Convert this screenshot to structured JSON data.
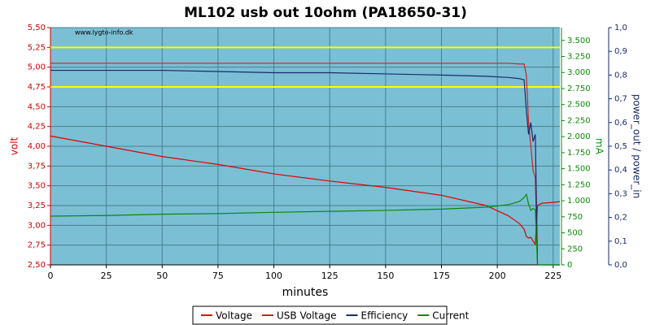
{
  "chart_data": {
    "type": "line",
    "title": "ML102 usb out 10ohm (PA18650-31)",
    "watermark": "www.lygte-info.dk",
    "xlabel": "minutes",
    "ylabel": "volt",
    "y2label": "mA",
    "y3label": "power_out / power_in",
    "x": [
      0,
      25,
      50,
      75,
      100,
      125,
      150,
      175,
      195,
      205,
      210,
      212,
      213,
      214,
      215,
      216,
      217,
      218,
      220,
      225,
      228
    ],
    "series": [
      {
        "name": "Voltage",
        "color": "#e00000",
        "axis": "y",
        "values": [
          4.13,
          4.0,
          3.87,
          3.77,
          3.65,
          3.56,
          3.48,
          3.38,
          3.25,
          3.12,
          3.02,
          2.95,
          2.86,
          2.84,
          2.85,
          2.8,
          2.76,
          3.25,
          3.28,
          3.29,
          3.3
        ]
      },
      {
        "name": "USB Voltage",
        "color": "#d02020",
        "axis": "y",
        "values": [
          5.05,
          5.05,
          5.05,
          5.05,
          5.05,
          5.05,
          5.05,
          5.05,
          5.05,
          5.05,
          5.04,
          5.04,
          4.9,
          4.3,
          4.0,
          3.7,
          3.6,
          2.5,
          null,
          null,
          null
        ]
      },
      {
        "name": "Efficiency",
        "color": "#1a2a6c",
        "axis": "y3",
        "values": [
          0.82,
          0.82,
          0.82,
          0.815,
          0.81,
          0.81,
          0.805,
          0.8,
          0.795,
          0.79,
          0.785,
          0.78,
          0.65,
          0.55,
          0.6,
          0.52,
          0.55,
          0,
          0,
          0,
          0
        ]
      },
      {
        "name": "Current",
        "color": "#0a8a0a",
        "axis": "y2",
        "values": [
          760,
          770,
          790,
          800,
          820,
          835,
          850,
          870,
          900,
          940,
          990,
          1050,
          1100,
          950,
          850,
          880,
          860,
          0,
          0,
          0,
          0
        ]
      }
    ],
    "reference_lines": {
      "values": [
        5.25,
        4.75
      ],
      "color": "#ffff00"
    },
    "xlim": [
      0,
      228
    ],
    "xticks": [
      0,
      25,
      50,
      75,
      100,
      125,
      150,
      175,
      200,
      225
    ],
    "ylim": [
      2.5,
      5.5
    ],
    "yticks": [
      {
        "value": 2.5,
        "label": "2,50"
      },
      {
        "value": 2.75,
        "label": "2,75"
      },
      {
        "value": 3.0,
        "label": "3,00"
      },
      {
        "value": 3.25,
        "label": "3,25"
      },
      {
        "value": 3.5,
        "label": "3,50"
      },
      {
        "value": 3.75,
        "label": "3,75"
      },
      {
        "value": 4.0,
        "label": "4,00"
      },
      {
        "value": 4.25,
        "label": "4,25"
      },
      {
        "value": 4.5,
        "label": "4,50"
      },
      {
        "value": 4.75,
        "label": "4,75"
      },
      {
        "value": 5.0,
        "label": "5,00"
      },
      {
        "value": 5.25,
        "label": "5,25"
      },
      {
        "value": 5.5,
        "label": "5,50"
      }
    ],
    "y2lim": [
      0,
      3700
    ],
    "y2ticks": [
      0,
      250,
      500,
      750,
      {
        "value": 1000,
        "label": "1.000"
      },
      {
        "value": 1250,
        "label": "1.250"
      },
      {
        "value": 1500,
        "label": "1.500"
      },
      {
        "value": 1750,
        "label": "1.750"
      },
      {
        "value": 2000,
        "label": "2.000"
      },
      {
        "value": 2250,
        "label": "2.250"
      },
      {
        "value": 2500,
        "label": "2.500"
      },
      {
        "value": 2750,
        "label": "2.750"
      },
      {
        "value": 3000,
        "label": "3.000"
      },
      {
        "value": 3250,
        "label": "3.250"
      },
      {
        "value": 3500,
        "label": "3.500"
      }
    ],
    "y3lim": [
      0,
      1
    ],
    "y3ticks": [
      {
        "value": 0,
        "label": "0,0"
      },
      {
        "value": 0.1,
        "label": "0,1"
      },
      {
        "value": 0.2,
        "label": "0,2"
      },
      {
        "value": 0.3,
        "label": "0,3"
      },
      {
        "value": 0.4,
        "label": "0,4"
      },
      {
        "value": 0.5,
        "label": "0,5"
      },
      {
        "value": 0.6,
        "label": "0,6"
      },
      {
        "value": 0.7,
        "label": "0,7"
      },
      {
        "value": 0.8,
        "label": "0,8"
      },
      {
        "value": 0.9,
        "label": "0,9"
      },
      {
        "value": 1.0,
        "label": "1,0"
      }
    ],
    "grid": true,
    "legend": "bottom"
  }
}
